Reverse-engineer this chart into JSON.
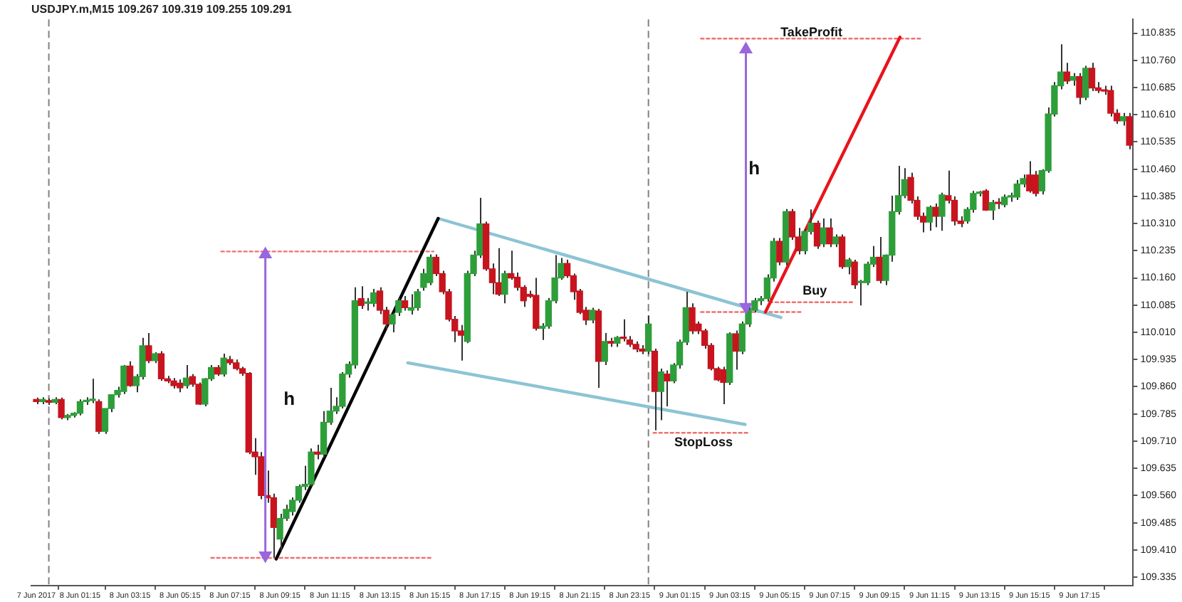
{
  "chart_data": {
    "type": "candlestick",
    "title": "USDJPY.m,M15 109.267 109.319 109.255 109.291",
    "x": [
      "2017-06-07T23:30",
      "2017-06-07T23:45",
      "2017-06-08T00:00",
      "2017-06-08T00:15",
      "2017-06-08T00:30",
      "2017-06-08T00:45",
      "2017-06-08T01:00",
      "2017-06-08T01:15",
      "2017-06-08T01:30",
      "2017-06-08T01:45",
      "2017-06-08T02:00",
      "2017-06-08T02:15",
      "2017-06-08T02:30",
      "2017-06-08T02:45",
      "2017-06-08T03:00",
      "2017-06-08T03:15",
      "2017-06-08T03:30",
      "2017-06-08T03:45",
      "2017-06-08T04:00",
      "2017-06-08T04:15",
      "2017-06-08T04:30",
      "2017-06-08T04:45",
      "2017-06-08T05:00",
      "2017-06-08T05:15",
      "2017-06-08T05:30",
      "2017-06-08T05:45",
      "2017-06-08T06:00",
      "2017-06-08T06:15",
      "2017-06-08T06:30",
      "2017-06-08T06:45",
      "2017-06-08T07:00",
      "2017-06-08T07:15",
      "2017-06-08T07:30",
      "2017-06-08T07:45",
      "2017-06-08T08:00",
      "2017-06-08T08:15",
      "2017-06-08T08:30",
      "2017-06-08T08:45",
      "2017-06-08T09:00",
      "2017-06-08T09:15",
      "2017-06-08T09:30",
      "2017-06-08T09:45",
      "2017-06-08T10:00",
      "2017-06-08T10:15",
      "2017-06-08T10:30",
      "2017-06-08T10:45",
      "2017-06-08T11:00",
      "2017-06-08T11:15",
      "2017-06-08T11:30",
      "2017-06-08T11:45",
      "2017-06-08T12:00",
      "2017-06-08T12:15",
      "2017-06-08T12:30",
      "2017-06-08T12:45",
      "2017-06-08T13:00",
      "2017-06-08T13:15",
      "2017-06-08T13:30",
      "2017-06-08T13:45",
      "2017-06-08T14:00",
      "2017-06-08T14:15",
      "2017-06-08T14:30",
      "2017-06-08T14:45",
      "2017-06-08T15:00",
      "2017-06-08T15:15",
      "2017-06-08T15:30",
      "2017-06-08T15:45",
      "2017-06-08T16:00",
      "2017-06-08T16:15",
      "2017-06-08T16:30",
      "2017-06-08T16:45",
      "2017-06-08T17:00",
      "2017-06-08T17:15",
      "2017-06-08T17:30",
      "2017-06-08T17:45",
      "2017-06-08T18:00",
      "2017-06-08T18:15",
      "2017-06-08T18:30",
      "2017-06-08T18:45",
      "2017-06-08T19:00",
      "2017-06-08T19:15",
      "2017-06-08T19:30",
      "2017-06-08T19:45",
      "2017-06-08T20:00",
      "2017-06-08T20:15",
      "2017-06-08T20:30",
      "2017-06-08T20:45",
      "2017-06-08T21:00",
      "2017-06-08T21:15",
      "2017-06-08T21:30",
      "2017-06-08T21:45",
      "2017-06-08T22:00",
      "2017-06-08T22:15",
      "2017-06-08T22:30",
      "2017-06-08T22:45",
      "2017-06-08T23:00",
      "2017-06-08T23:15",
      "2017-06-08T23:30",
      "2017-06-08T23:45",
      "2017-06-09T00:00",
      "2017-06-09T00:15",
      "2017-06-09T00:30",
      "2017-06-09T00:45",
      "2017-06-09T01:00",
      "2017-06-09T01:15",
      "2017-06-09T01:30",
      "2017-06-09T01:45",
      "2017-06-09T02:00",
      "2017-06-09T02:15",
      "2017-06-09T02:30",
      "2017-06-09T02:45",
      "2017-06-09T03:00",
      "2017-06-09T03:15",
      "2017-06-09T03:30",
      "2017-06-09T03:45",
      "2017-06-09T04:00",
      "2017-06-09T04:15",
      "2017-06-09T04:30",
      "2017-06-09T04:45",
      "2017-06-09T05:00",
      "2017-06-09T05:15",
      "2017-06-09T05:30",
      "2017-06-09T05:45",
      "2017-06-09T06:00",
      "2017-06-09T06:15",
      "2017-06-09T06:30",
      "2017-06-09T06:45",
      "2017-06-09T07:00",
      "2017-06-09T07:15",
      "2017-06-09T07:30",
      "2017-06-09T07:45",
      "2017-06-09T08:00",
      "2017-06-09T08:15",
      "2017-06-09T08:30",
      "2017-06-09T08:45",
      "2017-06-09T09:00",
      "2017-06-09T09:15",
      "2017-06-09T09:30",
      "2017-06-09T09:45",
      "2017-06-09T10:00",
      "2017-06-09T10:15",
      "2017-06-09T10:30",
      "2017-06-09T10:45",
      "2017-06-09T11:00",
      "2017-06-09T11:15",
      "2017-06-09T11:30",
      "2017-06-09T11:45",
      "2017-06-09T12:00",
      "2017-06-09T12:15",
      "2017-06-09T12:30",
      "2017-06-09T12:45",
      "2017-06-09T13:00",
      "2017-06-09T13:15",
      "2017-06-09T13:30",
      "2017-06-09T13:45",
      "2017-06-09T14:00",
      "2017-06-09T14:15",
      "2017-06-09T14:30",
      "2017-06-09T14:45",
      "2017-06-09T15:00",
      "2017-06-09T15:15",
      "2017-06-09T15:30",
      "2017-06-09T15:45",
      "2017-06-09T16:00",
      "2017-06-09T16:15",
      "2017-06-09T16:30",
      "2017-06-09T16:45",
      "2017-06-09T17:00",
      "2017-06-09T17:15",
      "2017-06-09T17:30",
      "2017-06-09T17:45",
      "2017-06-09T18:00",
      "2017-06-09T18:15",
      "2017-06-09T18:30",
      "2017-06-09T18:45",
      "2017-06-09T19:00",
      "2017-06-09T19:15"
    ],
    "ohlc": [
      [
        109.825,
        109.83,
        109.812,
        109.819
      ],
      [
        109.819,
        109.831,
        109.812,
        109.825
      ],
      [
        109.822,
        109.828,
        109.81,
        109.817
      ],
      [
        109.817,
        109.831,
        109.812,
        109.825
      ],
      [
        109.825,
        109.83,
        109.77,
        109.775
      ],
      [
        109.775,
        109.785,
        109.768,
        109.781
      ],
      [
        109.781,
        109.79,
        109.775,
        109.787
      ],
      [
        109.787,
        109.825,
        109.781,
        109.819
      ],
      [
        109.819,
        109.831,
        109.81,
        109.822
      ],
      [
        109.822,
        109.882,
        109.815,
        109.825
      ],
      [
        109.819,
        109.825,
        109.73,
        109.737
      ],
      [
        109.737,
        109.8,
        109.73,
        109.8
      ],
      [
        109.8,
        109.838,
        109.79,
        109.838
      ],
      [
        109.838,
        109.86,
        109.83,
        109.85
      ],
      [
        109.847,
        109.92,
        109.84,
        109.917
      ],
      [
        109.917,
        109.93,
        109.86,
        109.863
      ],
      [
        109.863,
        109.895,
        109.845,
        109.888
      ],
      [
        109.888,
        109.995,
        109.88,
        109.973
      ],
      [
        109.973,
        110.008,
        109.925,
        109.932
      ],
      [
        109.932,
        109.955,
        109.925,
        109.951
      ],
      [
        109.951,
        109.958,
        109.876,
        109.882
      ],
      [
        109.882,
        109.89,
        109.87,
        109.876
      ],
      [
        109.876,
        109.884,
        109.855,
        109.863
      ],
      [
        109.87,
        109.88,
        109.845,
        109.857
      ],
      [
        109.863,
        109.92,
        109.855,
        109.884
      ],
      [
        109.888,
        109.895,
        109.86,
        109.867
      ],
      [
        109.867,
        109.872,
        109.81,
        109.812
      ],
      [
        109.812,
        109.884,
        109.806,
        109.882
      ],
      [
        109.882,
        109.92,
        109.876,
        109.913
      ],
      [
        109.913,
        109.92,
        109.89,
        109.895
      ],
      [
        109.895,
        109.951,
        109.888,
        109.939
      ],
      [
        109.935,
        109.945,
        109.92,
        109.926
      ],
      [
        109.926,
        109.935,
        109.905,
        109.91
      ],
      [
        109.91,
        109.915,
        109.89,
        109.897
      ],
      [
        109.897,
        109.9,
        109.674,
        109.68
      ],
      [
        109.68,
        109.718,
        109.617,
        109.667
      ],
      [
        109.667,
        109.68,
        109.55,
        109.56
      ],
      [
        109.56,
        109.629,
        109.54,
        109.554
      ],
      [
        109.554,
        109.565,
        109.389,
        109.472
      ],
      [
        109.44,
        109.51,
        109.408,
        109.497
      ],
      [
        109.497,
        109.535,
        109.49,
        109.522
      ],
      [
        109.516,
        109.555,
        109.505,
        109.547
      ],
      [
        109.547,
        109.59,
        109.54,
        109.585
      ],
      [
        109.585,
        109.642,
        109.575,
        109.591
      ],
      [
        109.591,
        109.69,
        109.585,
        109.68
      ],
      [
        109.68,
        109.7,
        109.66,
        109.674
      ],
      [
        109.674,
        109.793,
        109.665,
        109.762
      ],
      [
        109.762,
        109.857,
        109.755,
        109.793
      ],
      [
        109.793,
        109.831,
        109.785,
        109.806
      ],
      [
        109.806,
        109.9,
        109.8,
        109.895
      ],
      [
        109.895,
        109.93,
        109.885,
        109.922
      ],
      [
        109.92,
        110.134,
        109.91,
        110.097
      ],
      [
        110.103,
        110.137,
        110.075,
        110.084
      ],
      [
        110.09,
        110.105,
        110.07,
        110.09
      ],
      [
        110.09,
        110.13,
        110.08,
        110.119
      ],
      [
        110.124,
        110.134,
        110.06,
        110.071
      ],
      [
        110.071,
        110.08,
        110.02,
        110.033
      ],
      [
        110.033,
        110.065,
        110.01,
        110.059
      ],
      [
        110.065,
        110.105,
        110.055,
        110.097
      ],
      [
        110.097,
        110.11,
        110.07,
        110.078
      ],
      [
        110.071,
        110.115,
        110.059,
        110.078
      ],
      [
        110.078,
        110.13,
        110.07,
        110.122
      ],
      [
        110.134,
        110.185,
        110.125,
        110.172
      ],
      [
        110.147,
        110.225,
        110.14,
        110.217
      ],
      [
        110.217,
        110.225,
        110.165,
        110.172
      ],
      [
        110.172,
        110.18,
        110.115,
        110.122
      ],
      [
        110.122,
        110.13,
        110.04,
        110.046
      ],
      [
        110.046,
        110.055,
        109.983,
        110.014
      ],
      [
        110.014,
        110.03,
        109.932,
        110.002
      ],
      [
        109.985,
        110.18,
        109.98,
        110.172
      ],
      [
        110.172,
        110.235,
        110.165,
        110.223
      ],
      [
        110.223,
        110.381,
        110.215,
        110.309
      ],
      [
        110.309,
        110.315,
        110.18,
        110.185
      ],
      [
        110.185,
        110.2,
        110.115,
        110.147
      ],
      [
        110.147,
        110.242,
        110.11,
        110.115
      ],
      [
        110.115,
        110.18,
        110.09,
        110.172
      ],
      [
        110.172,
        110.235,
        110.155,
        110.16
      ],
      [
        110.162,
        110.175,
        110.125,
        110.134
      ],
      [
        110.134,
        110.14,
        110.08,
        110.097
      ],
      [
        110.115,
        110.125,
        110.105,
        110.109
      ],
      [
        110.112,
        110.16,
        110.015,
        110.021
      ],
      [
        110.021,
        110.035,
        109.989,
        110.027
      ],
      [
        110.027,
        110.105,
        110.02,
        110.097
      ],
      [
        110.097,
        110.223,
        110.09,
        110.16
      ],
      [
        110.16,
        110.215,
        110.155,
        110.2
      ],
      [
        110.2,
        110.21,
        110.16,
        110.166
      ],
      [
        110.166,
        110.172,
        110.1,
        110.122
      ],
      [
        110.124,
        110.13,
        110.06,
        110.065
      ],
      [
        110.071,
        110.08,
        110.03,
        110.044
      ],
      [
        110.044,
        110.078,
        110.035,
        110.071
      ],
      [
        110.069,
        110.075,
        109.857,
        109.93
      ],
      [
        109.93,
        110.008,
        109.92,
        109.985
      ],
      [
        109.985,
        109.995,
        109.97,
        109.98
      ],
      [
        109.98,
        110.0,
        109.97,
        109.996
      ],
      [
        109.996,
        110.046,
        109.985,
        109.993
      ],
      [
        109.989,
        110.0,
        109.97,
        109.977
      ],
      [
        109.977,
        109.985,
        109.955,
        109.964
      ],
      [
        109.964,
        109.975,
        109.95,
        109.958
      ],
      [
        109.958,
        110.056,
        109.95,
        110.033
      ],
      [
        109.958,
        109.965,
        109.74,
        109.847
      ],
      [
        109.847,
        109.91,
        109.768,
        109.901
      ],
      [
        109.895,
        109.905,
        109.806,
        109.876
      ],
      [
        109.876,
        109.925,
        109.87,
        109.92
      ],
      [
        109.92,
        109.99,
        109.91,
        109.983
      ],
      [
        109.983,
        110.122,
        109.975,
        110.078
      ],
      [
        110.078,
        110.09,
        110.005,
        110.014
      ],
      [
        110.033,
        110.04,
        110.005,
        110.014
      ],
      [
        110.014,
        110.02,
        109.965,
        109.974
      ],
      [
        109.974,
        109.98,
        109.905,
        109.91
      ],
      [
        109.91,
        109.915,
        109.875,
        109.879
      ],
      [
        109.907,
        109.915,
        109.812,
        109.872
      ],
      [
        109.872,
        110.01,
        109.865,
        110.006
      ],
      [
        110.006,
        110.015,
        109.907,
        109.958
      ],
      [
        109.958,
        110.04,
        109.95,
        110.033
      ],
      [
        110.033,
        110.08,
        110.025,
        110.071
      ],
      [
        110.071,
        110.105,
        110.065,
        110.097
      ],
      [
        110.097,
        110.11,
        110.085,
        110.103
      ],
      [
        110.103,
        110.17,
        110.095,
        110.16
      ],
      [
        110.16,
        110.27,
        110.15,
        110.261
      ],
      [
        110.261,
        110.27,
        110.195,
        110.204
      ],
      [
        110.204,
        110.35,
        110.195,
        110.343
      ],
      [
        110.343,
        110.35,
        110.265,
        110.273
      ],
      [
        110.273,
        110.298,
        110.225,
        110.235
      ],
      [
        110.235,
        110.295,
        110.225,
        110.288
      ],
      [
        110.288,
        110.349,
        110.28,
        110.311
      ],
      [
        110.311,
        110.318,
        110.24,
        110.248
      ],
      [
        110.254,
        110.324,
        110.245,
        110.298
      ],
      [
        110.298,
        110.324,
        110.245,
        110.254
      ],
      [
        110.254,
        110.28,
        110.245,
        110.273
      ],
      [
        110.273,
        110.28,
        110.185,
        110.191
      ],
      [
        110.191,
        110.215,
        110.17,
        110.21
      ],
      [
        110.204,
        110.21,
        110.13,
        110.141
      ],
      [
        110.147,
        110.155,
        110.084,
        110.147
      ],
      [
        110.147,
        110.205,
        110.14,
        110.198
      ],
      [
        110.198,
        110.248,
        110.19,
        110.217
      ],
      [
        110.217,
        110.273,
        110.145,
        110.153
      ],
      [
        110.153,
        110.225,
        110.14,
        110.223
      ],
      [
        110.223,
        110.387,
        110.205,
        110.343
      ],
      [
        110.343,
        110.469,
        110.335,
        110.387
      ],
      [
        110.387,
        110.463,
        110.38,
        110.431
      ],
      [
        110.437,
        110.45,
        110.365,
        110.374
      ],
      [
        110.374,
        110.385,
        110.32,
        110.33
      ],
      [
        110.33,
        110.34,
        110.286,
        110.314
      ],
      [
        110.314,
        110.36,
        110.29,
        110.355
      ],
      [
        110.355,
        110.365,
        110.3,
        110.33
      ],
      [
        110.33,
        110.395,
        110.29,
        110.389
      ],
      [
        110.387,
        110.456,
        110.365,
        110.374
      ],
      [
        110.374,
        110.385,
        110.305,
        110.317
      ],
      [
        110.317,
        110.33,
        110.3,
        110.31
      ],
      [
        110.317,
        110.355,
        110.31,
        110.349
      ],
      [
        110.349,
        110.4,
        110.34,
        110.393
      ],
      [
        110.393,
        110.4,
        110.385,
        110.393
      ],
      [
        110.4,
        110.405,
        110.345,
        110.347
      ],
      [
        110.347,
        110.375,
        110.32,
        110.368
      ],
      [
        110.368,
        110.38,
        110.35,
        110.365
      ],
      [
        110.362,
        110.39,
        110.355,
        110.383
      ],
      [
        110.383,
        110.395,
        110.37,
        110.387
      ],
      [
        110.383,
        110.43,
        110.375,
        110.419
      ],
      [
        110.419,
        110.445,
        110.41,
        110.434
      ],
      [
        110.444,
        110.482,
        110.395,
        110.4
      ],
      [
        110.444,
        110.455,
        110.385,
        110.393
      ],
      [
        110.4,
        110.46,
        110.39,
        110.456
      ],
      [
        110.456,
        110.63,
        110.45,
        110.612
      ],
      [
        110.612,
        110.7,
        110.605,
        110.69
      ],
      [
        110.69,
        110.804,
        110.68,
        110.728
      ],
      [
        110.728,
        110.753,
        110.695,
        110.703
      ],
      [
        110.705,
        110.725,
        110.69,
        110.715
      ],
      [
        110.715,
        110.725,
        110.639,
        110.658
      ],
      [
        110.658,
        110.745,
        110.65,
        110.738
      ],
      [
        110.738,
        110.753,
        110.675,
        110.684
      ],
      [
        110.684,
        110.7,
        110.67,
        110.677
      ],
      [
        110.677,
        110.69,
        110.665,
        110.675
      ],
      [
        110.677,
        110.69,
        110.605,
        110.614
      ],
      [
        110.614,
        110.625,
        110.585,
        110.593
      ],
      [
        110.593,
        110.615,
        110.58,
        110.605
      ],
      [
        110.605,
        110.615,
        110.515,
        110.526
      ]
    ],
    "colors": [
      "#c8141e",
      "#2e9e3a",
      "#c8141e",
      "#2e9e3a",
      "#c8141e",
      "#2e9e3a",
      "#2e9e3a",
      "#2e9e3a",
      "#2e9e3a",
      "#2e9e3a",
      "#c8141e",
      "#2e9e3a",
      "#2e9e3a",
      "#2e9e3a",
      "#2e9e3a",
      "#c8141e",
      "#2e9e3a",
      "#2e9e3a",
      "#c8141e",
      "#2e9e3a",
      "#c8141e",
      "#c8141e",
      "#c8141e",
      "#c8141e",
      "#2e9e3a",
      "#c8141e",
      "#c8141e",
      "#2e9e3a",
      "#2e9e3a",
      "#c8141e",
      "#2e9e3a",
      "#c8141e",
      "#c8141e",
      "#c8141e",
      "#c8141e",
      "#c8141e",
      "#c8141e",
      "#c8141e",
      "#c8141e",
      "#2e9e3a",
      "#2e9e3a",
      "#2e9e3a",
      "#2e9e3a",
      "#2e9e3a",
      "#2e9e3a",
      "#c8141e",
      "#2e9e3a",
      "#2e9e3a",
      "#2e9e3a",
      "#2e9e3a",
      "#2e9e3a",
      "#2e9e3a",
      "#c8141e",
      "#2e9e3a",
      "#2e9e3a",
      "#c8141e",
      "#c8141e",
      "#2e9e3a",
      "#2e9e3a",
      "#c8141e",
      "#2e9e3a",
      "#2e9e3a",
      "#2e9e3a",
      "#2e9e3a",
      "#c8141e",
      "#c8141e",
      "#c8141e",
      "#c8141e",
      "#c8141e",
      "#2e9e3a",
      "#2e9e3a",
      "#2e9e3a",
      "#c8141e",
      "#c8141e",
      "#c8141e",
      "#2e9e3a",
      "#c8141e",
      "#c8141e",
      "#c8141e",
      "#c8141e",
      "#c8141e",
      "#2e9e3a",
      "#2e9e3a",
      "#2e9e3a",
      "#2e9e3a",
      "#c8141e",
      "#c8141e",
      "#c8141e",
      "#c8141e",
      "#2e9e3a",
      "#c8141e",
      "#2e9e3a",
      "#c8141e",
      "#2e9e3a",
      "#c8141e",
      "#c8141e",
      "#c8141e",
      "#c8141e",
      "#2e9e3a",
      "#c8141e",
      "#2e9e3a",
      "#c8141e",
      "#2e9e3a",
      "#2e9e3a",
      "#2e9e3a",
      "#c8141e",
      "#c8141e",
      "#c8141e",
      "#c8141e",
      "#c8141e",
      "#c8141e",
      "#2e9e3a",
      "#c8141e",
      "#2e9e3a",
      "#2e9e3a",
      "#2e9e3a",
      "#2e9e3a",
      "#2e9e3a",
      "#2e9e3a",
      "#c8141e",
      "#2e9e3a",
      "#c8141e",
      "#c8141e",
      "#2e9e3a",
      "#2e9e3a",
      "#c8141e",
      "#2e9e3a",
      "#c8141e",
      "#2e9e3a",
      "#c8141e",
      "#2e9e3a",
      "#c8141e",
      "#2e9e3a",
      "#2e9e3a",
      "#2e9e3a",
      "#c8141e",
      "#2e9e3a",
      "#2e9e3a",
      "#2e9e3a",
      "#2e9e3a",
      "#c8141e",
      "#c8141e",
      "#c8141e",
      "#2e9e3a",
      "#c8141e",
      "#2e9e3a",
      "#c8141e",
      "#c8141e",
      "#c8141e",
      "#2e9e3a",
      "#2e9e3a",
      "#2e9e3a",
      "#c8141e",
      "#2e9e3a",
      "#c8141e",
      "#2e9e3a",
      "#2e9e3a",
      "#2e9e3a",
      "#2e9e3a",
      "#c8141e",
      "#c8141e",
      "#2e9e3a",
      "#2e9e3a",
      "#2e9e3a",
      "#2e9e3a",
      "#c8141e",
      "#2e9e3a",
      "#c8141e",
      "#2e9e3a",
      "#c8141e",
      "#c8141e",
      "#c8141e",
      "#c8141e",
      "#c8141e",
      "#2e9e3a",
      "#c8141e"
    ],
    "series": [
      {
        "type": "line",
        "color": "#000000",
        "x": [
          "2017-06-08T09:06",
          "2017-06-08T15:35"
        ],
        "values": [
          109.385,
          110.324
        ]
      },
      {
        "type": "line",
        "color": "#e8141c",
        "x": [
          "2017-06-09T04:41",
          "2017-06-09T10:04"
        ],
        "values": [
          110.066,
          110.824
        ]
      },
      {
        "type": "line",
        "color": "#8cc4d4",
        "x": [
          "2017-06-08T15:35",
          "2017-06-09T05:18"
        ],
        "values": [
          110.324,
          110.051
        ]
      },
      {
        "type": "line",
        "color": "#8cc4d4",
        "x": [
          "2017-06-08T14:22",
          "2017-06-09T03:52"
        ],
        "values": [
          109.926,
          109.756
        ]
      },
      {
        "type": "line",
        "color": "#f07070",
        "line_style": "dotted",
        "x": [
          "2017-06-08T06:54",
          "2017-06-08T15:24"
        ],
        "values": [
          110.233,
          110.233
        ]
      },
      {
        "type": "line",
        "color": "#f07070",
        "line_style": "dotted",
        "x": [
          "2017-06-08T06:30",
          "2017-06-08T15:18"
        ],
        "values": [
          109.388,
          109.388
        ]
      },
      {
        "type": "line",
        "color": "#f07070",
        "line_style": "dotted",
        "x": [
          "2017-06-09T02:06",
          "2017-06-09T10:54"
        ],
        "values": [
          110.82,
          110.82
        ]
      },
      {
        "type": "line",
        "color": "#f07070",
        "line_style": "dotted",
        "x": [
          "2017-06-09T04:51",
          "2017-06-09T08:09"
        ],
        "values": [
          110.093,
          110.093
        ]
      },
      {
        "type": "line",
        "color": "#f07070",
        "line_style": "dotted",
        "x": [
          "2017-06-09T02:06",
          "2017-06-09T06:12"
        ],
        "values": [
          110.066,
          110.066
        ]
      },
      {
        "type": "line",
        "color": "#f07070",
        "line_style": "dotted",
        "x": [
          "2017-06-09T00:12",
          "2017-06-09T04:00"
        ],
        "values": [
          109.733,
          109.733
        ]
      },
      {
        "type": "line",
        "color": "#9966dd",
        "marker": "triangle",
        "x": [
          "2017-06-08T08:40",
          "2017-06-08T08:40"
        ],
        "values": [
          109.395,
          110.225
        ]
      },
      {
        "type": "line",
        "color": "#9966dd",
        "marker": "triangle",
        "x": [
          "2017-06-09T03:54",
          "2017-06-09T03:54"
        ],
        "values": [
          110.08,
          110.79
        ]
      }
    ],
    "annotations": [
      "h",
      "h",
      "TakeProfit",
      "Buy",
      "StopLoss"
    ],
    "ref_lines": [
      {
        "axis": "x",
        "value": "2017-06-08T00:00",
        "color": "#808080",
        "line_style": "dashed"
      },
      {
        "axis": "x",
        "value": "2017-06-09T00:00",
        "color": "#808080",
        "line_style": "dashed"
      }
    ],
    "xlim": [
      "2017-06-07T23:18",
      "2017-06-09T19:24"
    ],
    "xticks": [
      {
        "value": "2017-06-07T23:30",
        "label": "7 Jun 2017"
      },
      {
        "value": "2017-06-08T01:15",
        "label": "8 Jun 01:15"
      },
      {
        "value": "2017-06-08T03:15",
        "label": "8 Jun 03:15"
      },
      {
        "value": "2017-06-08T05:15",
        "label": "8 Jun 05:15"
      },
      {
        "value": "2017-06-08T07:15",
        "label": "8 Jun 07:15"
      },
      {
        "value": "2017-06-08T09:15",
        "label": "8 Jun 09:15"
      },
      {
        "value": "2017-06-08T11:15",
        "label": "8 Jun 11:15"
      },
      {
        "value": "2017-06-08T13:15",
        "label": "8 Jun 13:15"
      },
      {
        "value": "2017-06-08T15:15",
        "label": "8 Jun 15:15"
      },
      {
        "value": "2017-06-08T17:15",
        "label": "8 Jun 17:15"
      },
      {
        "value": "2017-06-08T19:15",
        "label": "8 Jun 19:15"
      },
      {
        "value": "2017-06-08T21:15",
        "label": "8 Jun 21:15"
      },
      {
        "value": "2017-06-08T23:15",
        "label": "8 Jun 23:15"
      },
      {
        "value": "2017-06-09T01:15",
        "label": "9 Jun 01:15"
      },
      {
        "value": "2017-06-09T03:15",
        "label": "9 Jun 03:15"
      },
      {
        "value": "2017-06-09T05:15",
        "label": "9 Jun 05:15"
      },
      {
        "value": "2017-06-09T07:15",
        "label": "9 Jun 07:15"
      },
      {
        "value": "2017-06-09T09:15",
        "label": "9 Jun 09:15"
      },
      {
        "value": "2017-06-09T11:15",
        "label": "9 Jun 11:15"
      },
      {
        "value": "2017-06-09T13:15",
        "label": "9 Jun 13:15"
      },
      {
        "value": "2017-06-09T15:15",
        "label": "9 Jun 15:15"
      },
      {
        "value": "2017-06-09T17:15",
        "label": "9 Jun 17:15"
      }
    ],
    "ylim": [
      109.312,
      110.873
    ],
    "yticks": [
      109.335,
      {
        "value": 109.41,
        "label": "109.410"
      },
      109.485,
      {
        "value": 109.56,
        "label": "109.560"
      },
      109.635,
      {
        "value": 109.71,
        "label": "109.710"
      },
      109.785,
      {
        "value": 109.86,
        "label": "109.860"
      },
      109.935,
      {
        "value": 110.01,
        "label": "110.010"
      },
      110.085,
      {
        "value": 110.16,
        "label": "110.160"
      },
      110.235,
      {
        "value": 110.31,
        "label": "110.310"
      },
      110.385,
      {
        "value": 110.46,
        "label": "110.460"
      },
      110.535,
      {
        "value": 110.61,
        "label": "110.610"
      },
      110.685,
      {
        "value": 110.76,
        "label": "110.760"
      },
      110.835
    ]
  }
}
